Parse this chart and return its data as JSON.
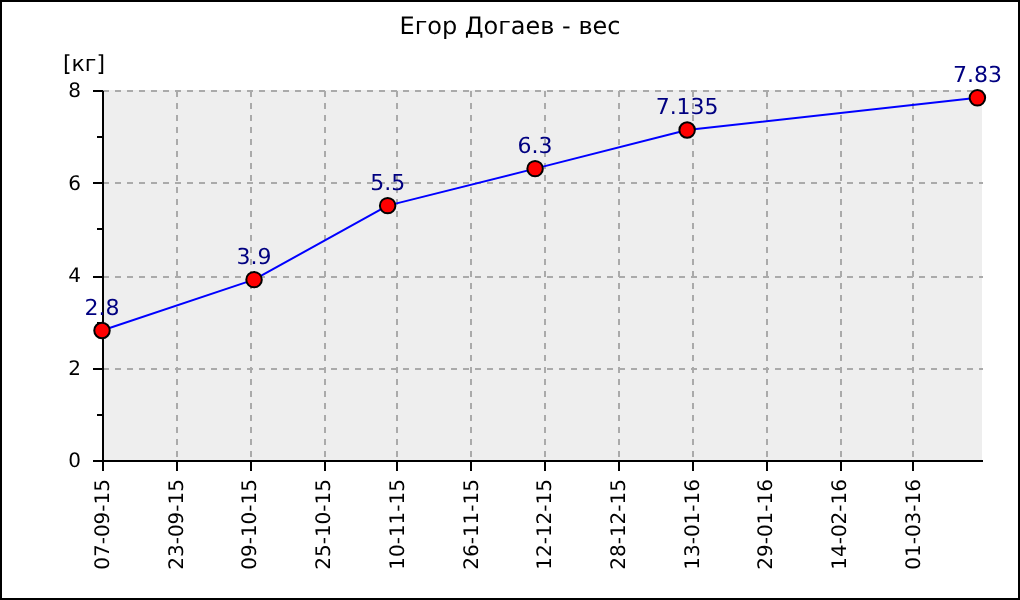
{
  "chart_data": {
    "type": "line",
    "title": "Егор Догаев - вес",
    "ylabel": "[кг]",
    "x": [
      "2015-09-07",
      "2015-10-10",
      "2015-11-08",
      "2015-12-10",
      "2016-01-12",
      "2016-03-15"
    ],
    "series": [
      {
        "color": "#0000ff",
        "values": [
          2.8,
          3.9,
          5.5,
          6.3,
          7.135,
          7.83
        ]
      }
    ],
    "xlim": [
      "2015-09-07",
      "2016-03-16"
    ],
    "xticks": [
      {
        "value": "2015-09-07",
        "label": "07-09-15"
      },
      {
        "value": "2015-09-23",
        "label": "23-09-15"
      },
      {
        "value": "2015-10-09",
        "label": "09-10-15"
      },
      {
        "value": "2015-10-25",
        "label": "25-10-15"
      },
      {
        "value": "2015-11-10",
        "label": "10-11-15"
      },
      {
        "value": "2015-11-26",
        "label": "26-11-15"
      },
      {
        "value": "2015-12-12",
        "label": "12-12-15"
      },
      {
        "value": "2015-12-28",
        "label": "28-12-15"
      },
      {
        "value": "2016-01-13",
        "label": "13-01-16"
      },
      {
        "value": "2016-01-29",
        "label": "29-01-16"
      },
      {
        "value": "2016-02-14",
        "label": "14-02-16"
      },
      {
        "value": "2016-03-01",
        "label": "01-03-16"
      }
    ],
    "ylim": [
      0,
      8
    ],
    "yticks": [
      0,
      {
        "value": 1,
        "label": null
      },
      2,
      {
        "value": 3,
        "label": null
      },
      4,
      {
        "value": 5,
        "label": null
      },
      6,
      {
        "value": 7,
        "label": null
      },
      8
    ],
    "grid": true,
    "marker": "circle",
    "line_style": "solid",
    "data_labels": true
  }
}
